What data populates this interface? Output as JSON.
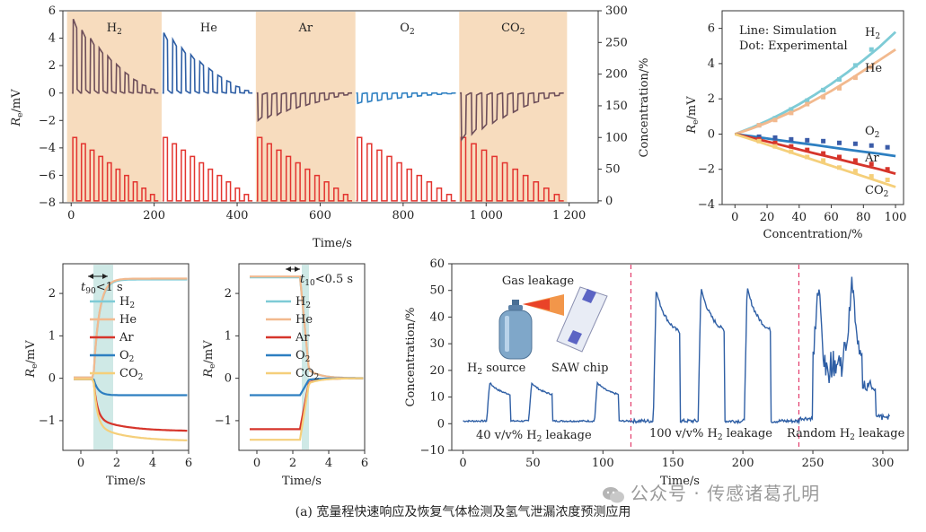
{
  "caption": "(a) 宽量程快速响应及恢复气体检测及氢气泄漏浓度预测应用",
  "watermark": "公众号 · 传感诸葛孔明",
  "colors": {
    "h2": "#7ecbd6",
    "he": "#f2b98e",
    "ar": "#d6352b",
    "o2": "#2d7fc1",
    "co2": "#f5cf7a",
    "signal_dark": "#6e4f5a",
    "signal_blue": "#2f5fa5",
    "conc_red": "#e3342f",
    "band": "#f7dcbe",
    "shade": "#cfe9e6",
    "dash": "#e23a6a",
    "scatter_blue": "#3b5ca8"
  },
  "chart_data": [
    {
      "id": "top-left",
      "type": "line",
      "xlabel": "Time/s",
      "ylabel_left": "Re/mV",
      "ylabel_right": "Concentration/%",
      "xlim": [
        -20,
        1270
      ],
      "ylim_left": [
        -8,
        6
      ],
      "ylim_right": [
        -3,
        300
      ],
      "xticks": [
        0,
        200,
        400,
        600,
        800,
        1000,
        1200
      ],
      "xtick_labels": [
        "0",
        "200",
        "400",
        "600",
        "800",
        "1 000",
        "1 200"
      ],
      "yticks_left": [
        -8,
        -6,
        -4,
        -2,
        0,
        2,
        4,
        6
      ],
      "yticks_right": [
        0,
        50,
        100,
        150,
        200,
        250,
        300
      ],
      "gas_segments": [
        {
          "gas": "H2",
          "label": "H",
          "sub": "2",
          "start": -10,
          "end": 218,
          "peaks": [
            5.4,
            4.6,
            4.0,
            3.3,
            2.7,
            2.1,
            1.5,
            1.0,
            0.6,
            0.3
          ],
          "shaded": true
        },
        {
          "gas": "He",
          "label": "He",
          "sub": "",
          "start": 218,
          "end": 445,
          "peaks": [
            4.4,
            3.9,
            3.3,
            2.8,
            2.3,
            1.8,
            1.3,
            0.9,
            0.5,
            0.2
          ],
          "shaded": false
        },
        {
          "gas": "Ar",
          "label": "Ar",
          "sub": "",
          "start": 445,
          "end": 685,
          "peaks": [
            -2.0,
            -1.8,
            -1.6,
            -1.3,
            -1.1,
            -0.9,
            -0.7,
            -0.5,
            -0.3,
            -0.15
          ],
          "shaded": true
        },
        {
          "gas": "O2",
          "label": "O",
          "sub": "2",
          "start": 685,
          "end": 935,
          "peaks": [
            -0.75,
            -0.65,
            -0.55,
            -0.45,
            -0.38,
            -0.3,
            -0.22,
            -0.15,
            -0.1,
            -0.05
          ],
          "shaded": false
        },
        {
          "gas": "CO2",
          "label": "CO",
          "sub": "2",
          "start": 935,
          "end": 1195,
          "peaks": [
            -3.4,
            -3.0,
            -2.6,
            -2.2,
            -1.8,
            -1.4,
            -1.0,
            -0.7,
            -0.4,
            -0.2
          ],
          "shaded": true
        }
      ],
      "concentration_pulses": [
        100,
        90,
        80,
        70,
        60,
        50,
        40,
        30,
        20,
        10
      ]
    },
    {
      "id": "top-right",
      "type": "scatter",
      "xlabel": "Concentration/%",
      "ylabel": "Re/mV",
      "xlim": [
        -8,
        105
      ],
      "ylim": [
        -4,
        7
      ],
      "xticks": [
        0,
        20,
        40,
        60,
        80,
        100
      ],
      "yticks": [
        -4,
        -2,
        0,
        2,
        4,
        6
      ],
      "legend_lines": [
        "Line: Simulation",
        "Dot: Experimental"
      ],
      "x_points": [
        0,
        10,
        20,
        30,
        40,
        50,
        60,
        70,
        80,
        90,
        100
      ],
      "series": [
        {
          "name": "H2",
          "label": "H",
          "sub": "2",
          "color": "#7ecbd6",
          "line": [
            0,
            0.35,
            0.75,
            1.2,
            1.7,
            2.25,
            2.85,
            3.5,
            4.2,
            4.95,
            5.8
          ],
          "dots_x": [
            15,
            25,
            35,
            45,
            55,
            65,
            75,
            85
          ],
          "dots": [
            0.5,
            0.9,
            1.4,
            1.9,
            2.5,
            3.1,
            3.9,
            4.8
          ]
        },
        {
          "name": "He",
          "label": "He",
          "sub": "",
          "color": "#f2b98e",
          "line": [
            0,
            0.3,
            0.65,
            1.05,
            1.45,
            1.95,
            2.45,
            3.0,
            3.6,
            4.2,
            4.8
          ],
          "dots_x": [
            15,
            25,
            35,
            45,
            55,
            65,
            75,
            85
          ],
          "dots": [
            0.5,
            0.8,
            1.2,
            1.7,
            2.1,
            2.6,
            3.2,
            3.8
          ]
        },
        {
          "name": "O2",
          "label": "O",
          "sub": "2",
          "color": "#2d7fc1",
          "line": [
            0,
            -0.12,
            -0.25,
            -0.38,
            -0.5,
            -0.62,
            -0.75,
            -0.88,
            -1.0,
            -1.12,
            -1.25
          ],
          "dots_x": [
            15,
            25,
            35,
            45,
            55,
            65,
            75,
            85,
            95
          ],
          "dots": [
            -0.15,
            -0.2,
            -0.3,
            -0.35,
            -0.4,
            -0.5,
            -0.55,
            -0.65,
            -0.75
          ]
        },
        {
          "name": "Ar",
          "label": "Ar",
          "sub": "",
          "color": "#d6352b",
          "line": [
            0,
            -0.2,
            -0.42,
            -0.65,
            -0.88,
            -1.1,
            -1.32,
            -1.55,
            -1.78,
            -2.0,
            -2.25
          ],
          "dots_x": [
            15,
            25,
            35,
            45,
            55,
            65,
            75,
            85,
            95
          ],
          "dots": [
            -0.3,
            -0.5,
            -0.7,
            -0.9,
            -1.1,
            -1.3,
            -1.5,
            -1.7,
            -2.0
          ]
        },
        {
          "name": "CO2",
          "label": "CO",
          "sub": "2",
          "color": "#f5cf7a",
          "line": [
            0,
            -0.3,
            -0.6,
            -0.9,
            -1.2,
            -1.5,
            -1.8,
            -2.1,
            -2.4,
            -2.7,
            -3.0
          ],
          "dots_x": [
            15,
            25,
            35,
            45,
            55,
            65,
            75,
            85,
            95
          ],
          "dots": [
            -0.4,
            -0.7,
            -1.0,
            -1.3,
            -1.5,
            -1.9,
            -2.1,
            -2.4,
            -2.6
          ]
        }
      ]
    },
    {
      "id": "bottom-left",
      "type": "line",
      "title": "t90<1 s",
      "title_parts": {
        "t": "t",
        "sub": "90",
        "rest": "<1 s"
      },
      "xlabel": "Time/s",
      "ylabel": "Re/mV",
      "xlim": [
        -1,
        6
      ],
      "ylim": [
        -1.7,
        2.7
      ],
      "xticks": [
        0,
        2,
        4,
        6
      ],
      "yticks": [
        -1,
        0,
        1,
        2
      ],
      "shade_x": [
        0.7,
        1.8
      ],
      "series": [
        {
          "name": "H2",
          "label": "H",
          "sub": "2",
          "final": 2.33
        },
        {
          "name": "He",
          "label": "He",
          "sub": "",
          "final": 2.35
        },
        {
          "name": "Ar",
          "label": "Ar",
          "sub": "",
          "final": -1.25
        },
        {
          "name": "O2",
          "label": "O",
          "sub": "2",
          "final": -0.4
        },
        {
          "name": "CO2",
          "label": "CO",
          "sub": "2",
          "final": -1.48
        }
      ]
    },
    {
      "id": "bottom-middle",
      "type": "line",
      "title": "t10<0.5 s",
      "title_parts": {
        "t": "t",
        "sub": "10",
        "rest": "<0.5 s"
      },
      "xlabel": "Time/s",
      "ylabel": "Re/mV",
      "xlim": [
        -1,
        6
      ],
      "ylim": [
        -1.7,
        2.7
      ],
      "xticks": [
        0,
        2,
        4,
        6
      ],
      "yticks": [
        -1,
        0,
        1,
        2
      ],
      "shade_x": [
        2.5,
        2.9
      ],
      "series": [
        {
          "name": "H2",
          "label": "H",
          "sub": "2",
          "start": 2.38
        },
        {
          "name": "He",
          "label": "He",
          "sub": "",
          "start": 2.4
        },
        {
          "name": "Ar",
          "label": "Ar",
          "sub": "",
          "start": -1.2
        },
        {
          "name": "O2",
          "label": "O",
          "sub": "2",
          "start": -0.4
        },
        {
          "name": "CO2",
          "label": "CO",
          "sub": "2",
          "start": -1.45
        }
      ]
    },
    {
      "id": "bottom-right",
      "type": "line",
      "xlabel": "Time/s",
      "ylabel": "Concentration/%",
      "xlim": [
        -8,
        318
      ],
      "ylim": [
        -10,
        60
      ],
      "xticks": [
        0,
        50,
        100,
        150,
        200,
        250,
        300
      ],
      "yticks": [
        -10,
        0,
        10,
        20,
        30,
        40,
        50,
        60
      ],
      "dividers": [
        120,
        240
      ],
      "low_peaks": [
        {
          "t": 18,
          "v": 15
        },
        {
          "t": 48,
          "v": 15
        },
        {
          "t": 95,
          "v": 15
        }
      ],
      "high_peaks": [
        {
          "t": 137,
          "v": 51
        },
        {
          "t": 169,
          "v": 52
        },
        {
          "t": 202,
          "v": 52
        }
      ],
      "region_labels": [
        {
          "text": "40 v/v% H",
          "sub": "2",
          "rest": " leakage"
        },
        {
          "text": "100 v/v% H",
          "sub": "2",
          "rest": " leakage"
        },
        {
          "text": "Random H",
          "sub": "2",
          "rest": " leakage"
        }
      ],
      "inset": {
        "gas": "Gas leakage",
        "source": "H",
        "source_sub": "2",
        "source_rest": " source",
        "chip": "SAW chip"
      }
    }
  ]
}
